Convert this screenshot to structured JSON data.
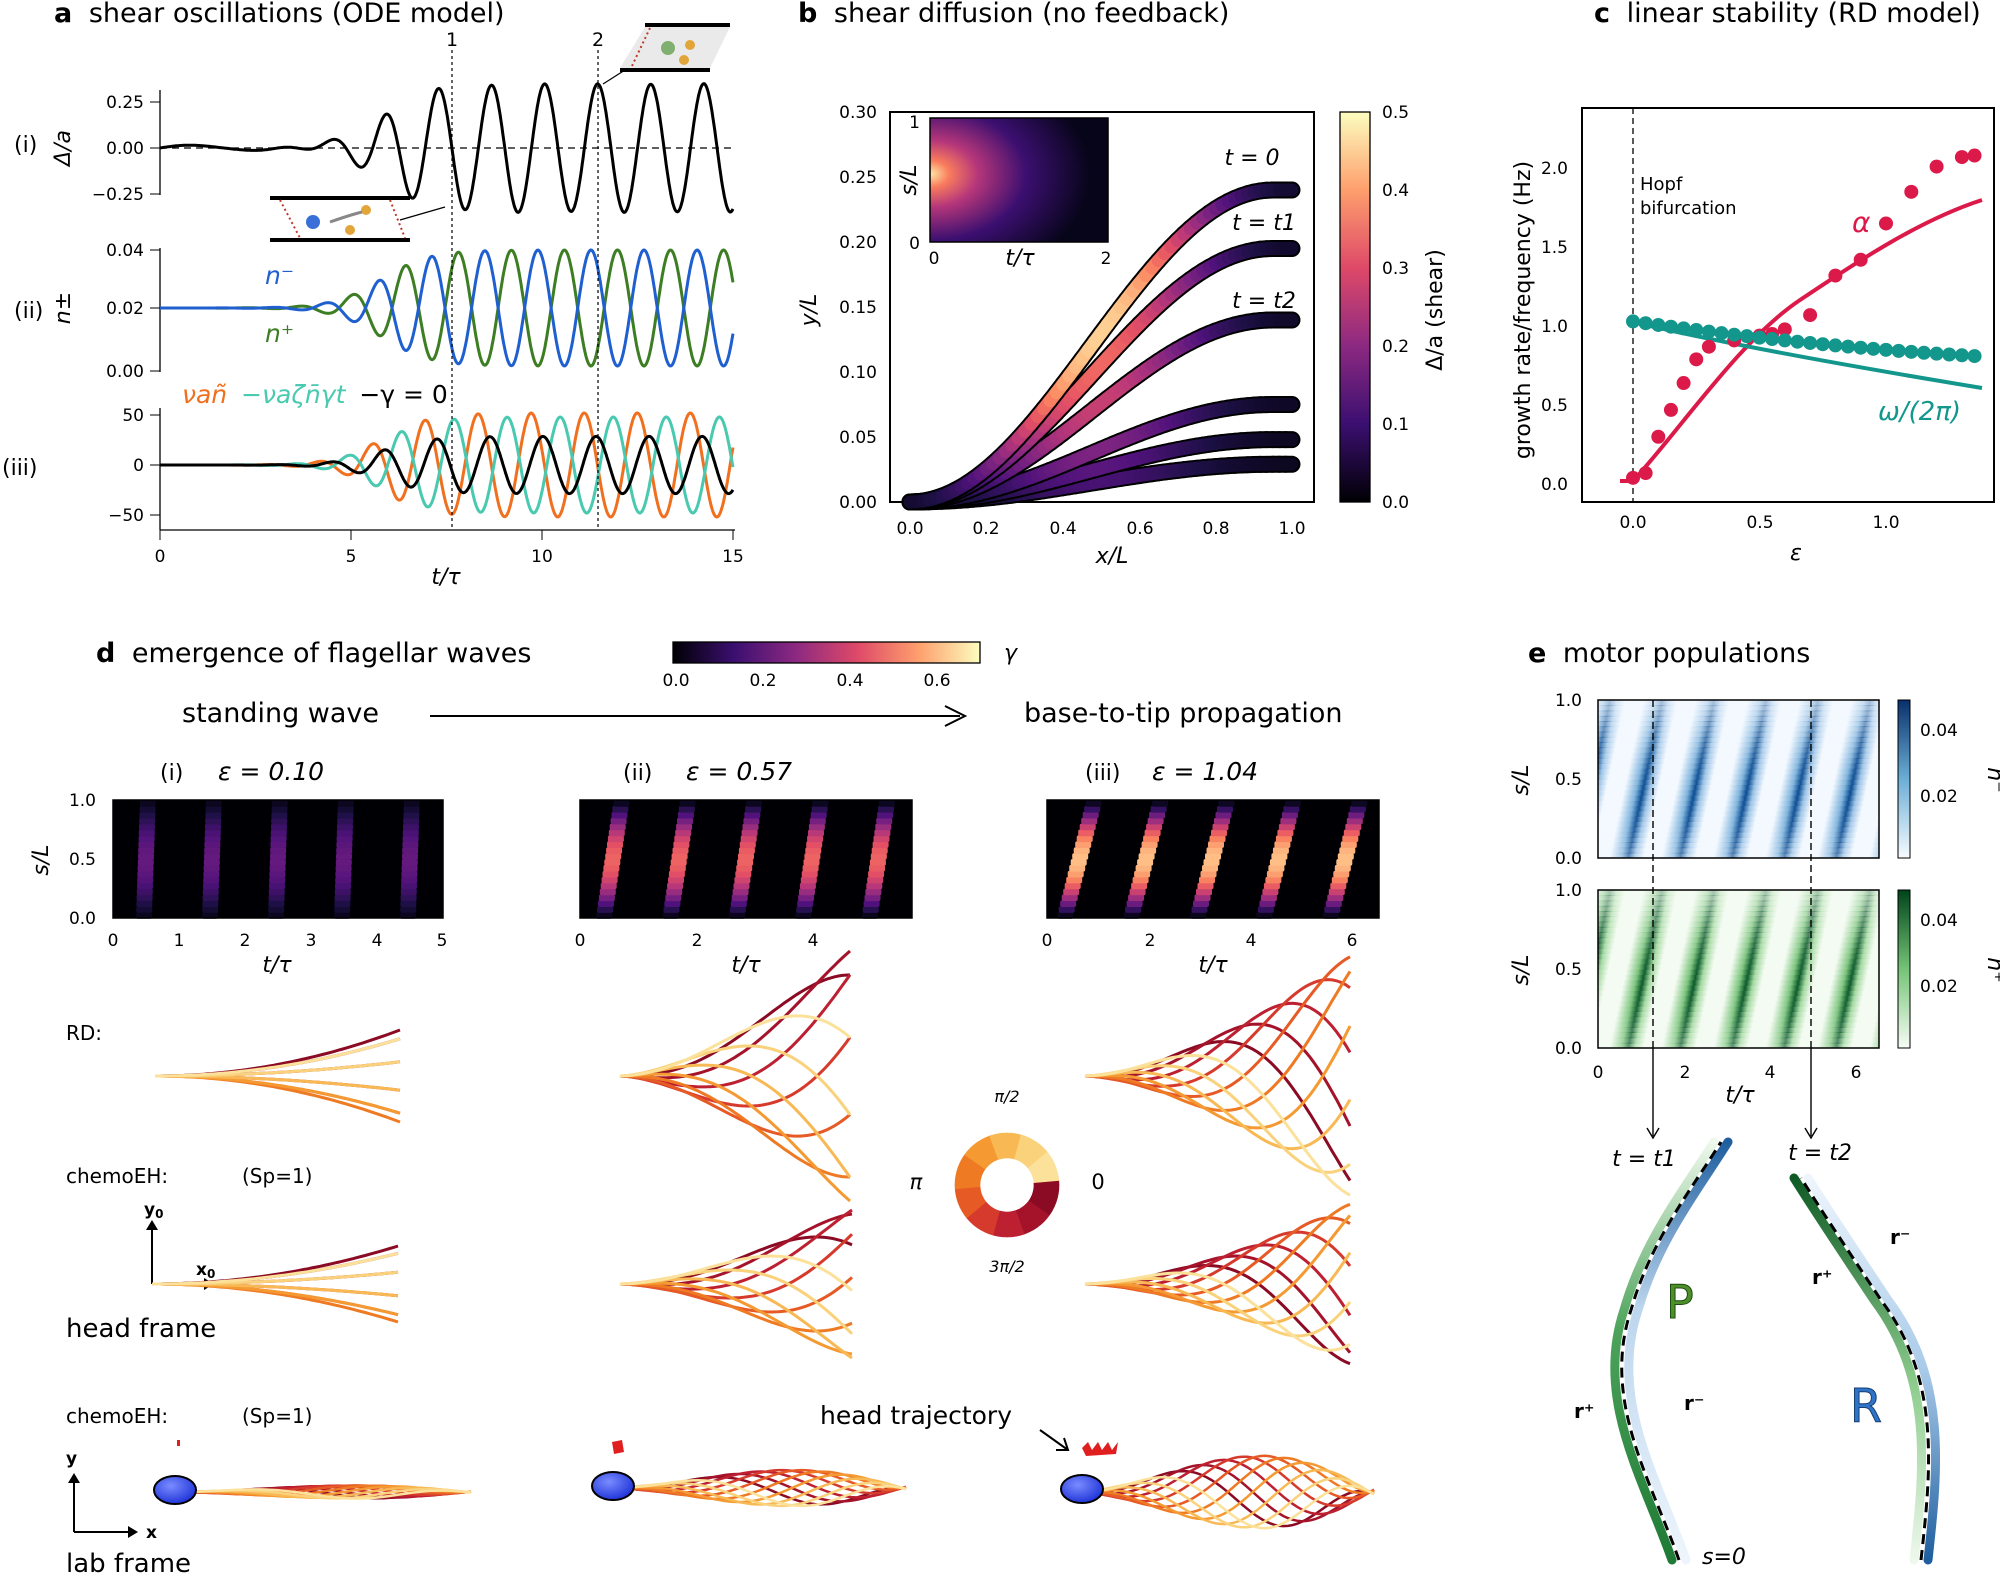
{
  "panels": {
    "a": {
      "letter": "a",
      "title": "shear oscillations (ODE model)",
      "rows": [
        "(i)",
        "(ii)",
        "(iii)"
      ],
      "ylabels": [
        "Δ/a",
        "n±",
        ""
      ],
      "row1_ticks": [
        "0.25",
        "0.00",
        "−0.25"
      ],
      "row2_ticks": [
        "0.04",
        "0.02",
        "0.00"
      ],
      "row3_ticks": [
        "50",
        "0",
        "−50"
      ],
      "x_ticks": [
        "0",
        "5",
        "10",
        "15"
      ],
      "xlabel": "t/τ",
      "markers": [
        "1",
        "2"
      ],
      "legend_nminus": "n⁻",
      "legend_nplus": "n⁺",
      "legend_eq1": "νañ",
      "legend_eq2": "−νaζn̄γt",
      "legend_eq3": "−γ = 0",
      "colors": {
        "shear": "#000000",
        "nminus": "#1f5fcf",
        "nplus": "#3d7d23",
        "orange": "#f07020",
        "teal": "#48c9b0"
      }
    },
    "b": {
      "letter": "b",
      "title": "shear diffusion (no feedback)",
      "ylabel": "y/L",
      "xlabel": "x/L",
      "y_ticks": [
        "0.30",
        "0.25",
        "0.20",
        "0.15",
        "0.10",
        "0.05",
        "0.00"
      ],
      "x_ticks": [
        "0.0",
        "0.2",
        "0.4",
        "0.6",
        "0.8",
        "1.0"
      ],
      "curve_labels": [
        "t = 0",
        "t = t1",
        "t = t2"
      ],
      "inset_ylabel": "s/L",
      "inset_xlabel": "t/τ",
      "inset_y_ticks": [
        "1",
        "0"
      ],
      "inset_x_ticks": [
        "0",
        "2"
      ],
      "cbar_label": "Δ/a (shear)",
      "cbar_ticks": [
        "0.5",
        "0.4",
        "0.3",
        "0.2",
        "0.1",
        "0.0"
      ]
    },
    "c": {
      "letter": "c",
      "title": "linear stability (RD model)",
      "ylabel": "growth rate/frequency (Hz)",
      "xlabel": "ε",
      "y_ticks": [
        "2.0",
        "1.5",
        "1.0",
        "0.5",
        "0.0"
      ],
      "x_ticks": [
        "0.0",
        "0.5",
        "1.0"
      ],
      "annotation": [
        "Hopf",
        "bifurcation"
      ],
      "alpha_label": "α",
      "omega_label": "ω/(2π)",
      "colors": {
        "alpha": "#dc1a4a",
        "omega": "#13968c"
      }
    },
    "d": {
      "letter": "d",
      "title": "emergence of flagellar waves",
      "cbar_ticks": [
        "0.0",
        "0.2",
        "0.4",
        "0.6"
      ],
      "cbar_label": "γ",
      "left_caption": "standing wave",
      "right_caption": "base-to-tip propagation",
      "subpanels": [
        {
          "tag": "(i)",
          "eps": "ε = 0.10",
          "x_ticks": [
            "0",
            "1",
            "2",
            "3",
            "4",
            "5"
          ]
        },
        {
          "tag": "(ii)",
          "eps": "ε = 0.57",
          "x_ticks": [
            "0",
            "2",
            "4"
          ]
        },
        {
          "tag": "(iii)",
          "eps": "ε = 1.04",
          "x_ticks": [
            "0",
            "2",
            "4",
            "6"
          ]
        }
      ],
      "kymo_ylabel": "s/L",
      "kymo_y_ticks": [
        "1.0",
        "0.5",
        "0.0"
      ],
      "kymo_xlabel": "t/τ",
      "row_rd": "RD:",
      "row_chemo": "chemoEH:",
      "sp": "(Sp=1)",
      "head_frame": "head frame",
      "lab_frame": "lab frame",
      "axis_y0": "y",
      "axis_x0": "x",
      "axis_sub": "0",
      "axis_y": "y",
      "axis_x": "x",
      "head_trajectory": "head trajectory",
      "phase_labels": [
        "π/2",
        "π",
        "0",
        "3π/2"
      ]
    },
    "e": {
      "letter": "e",
      "title": "motor populations",
      "ylabel": "s/L",
      "y_ticks": [
        "1.0",
        "0.5",
        "0.0"
      ],
      "x_ticks": [
        "0",
        "2",
        "4",
        "6"
      ],
      "xlabel": "t/τ",
      "cbar1_label": "n⁻",
      "cbar2_label": "n⁺",
      "cbar_ticks": [
        "0.04",
        "0.02"
      ],
      "t1": "t = t1",
      "t2": "t = t2",
      "P": "P",
      "R": "R",
      "r_plus": "r⁺",
      "r_minus": "r⁻",
      "s0": "s=0"
    }
  }
}
